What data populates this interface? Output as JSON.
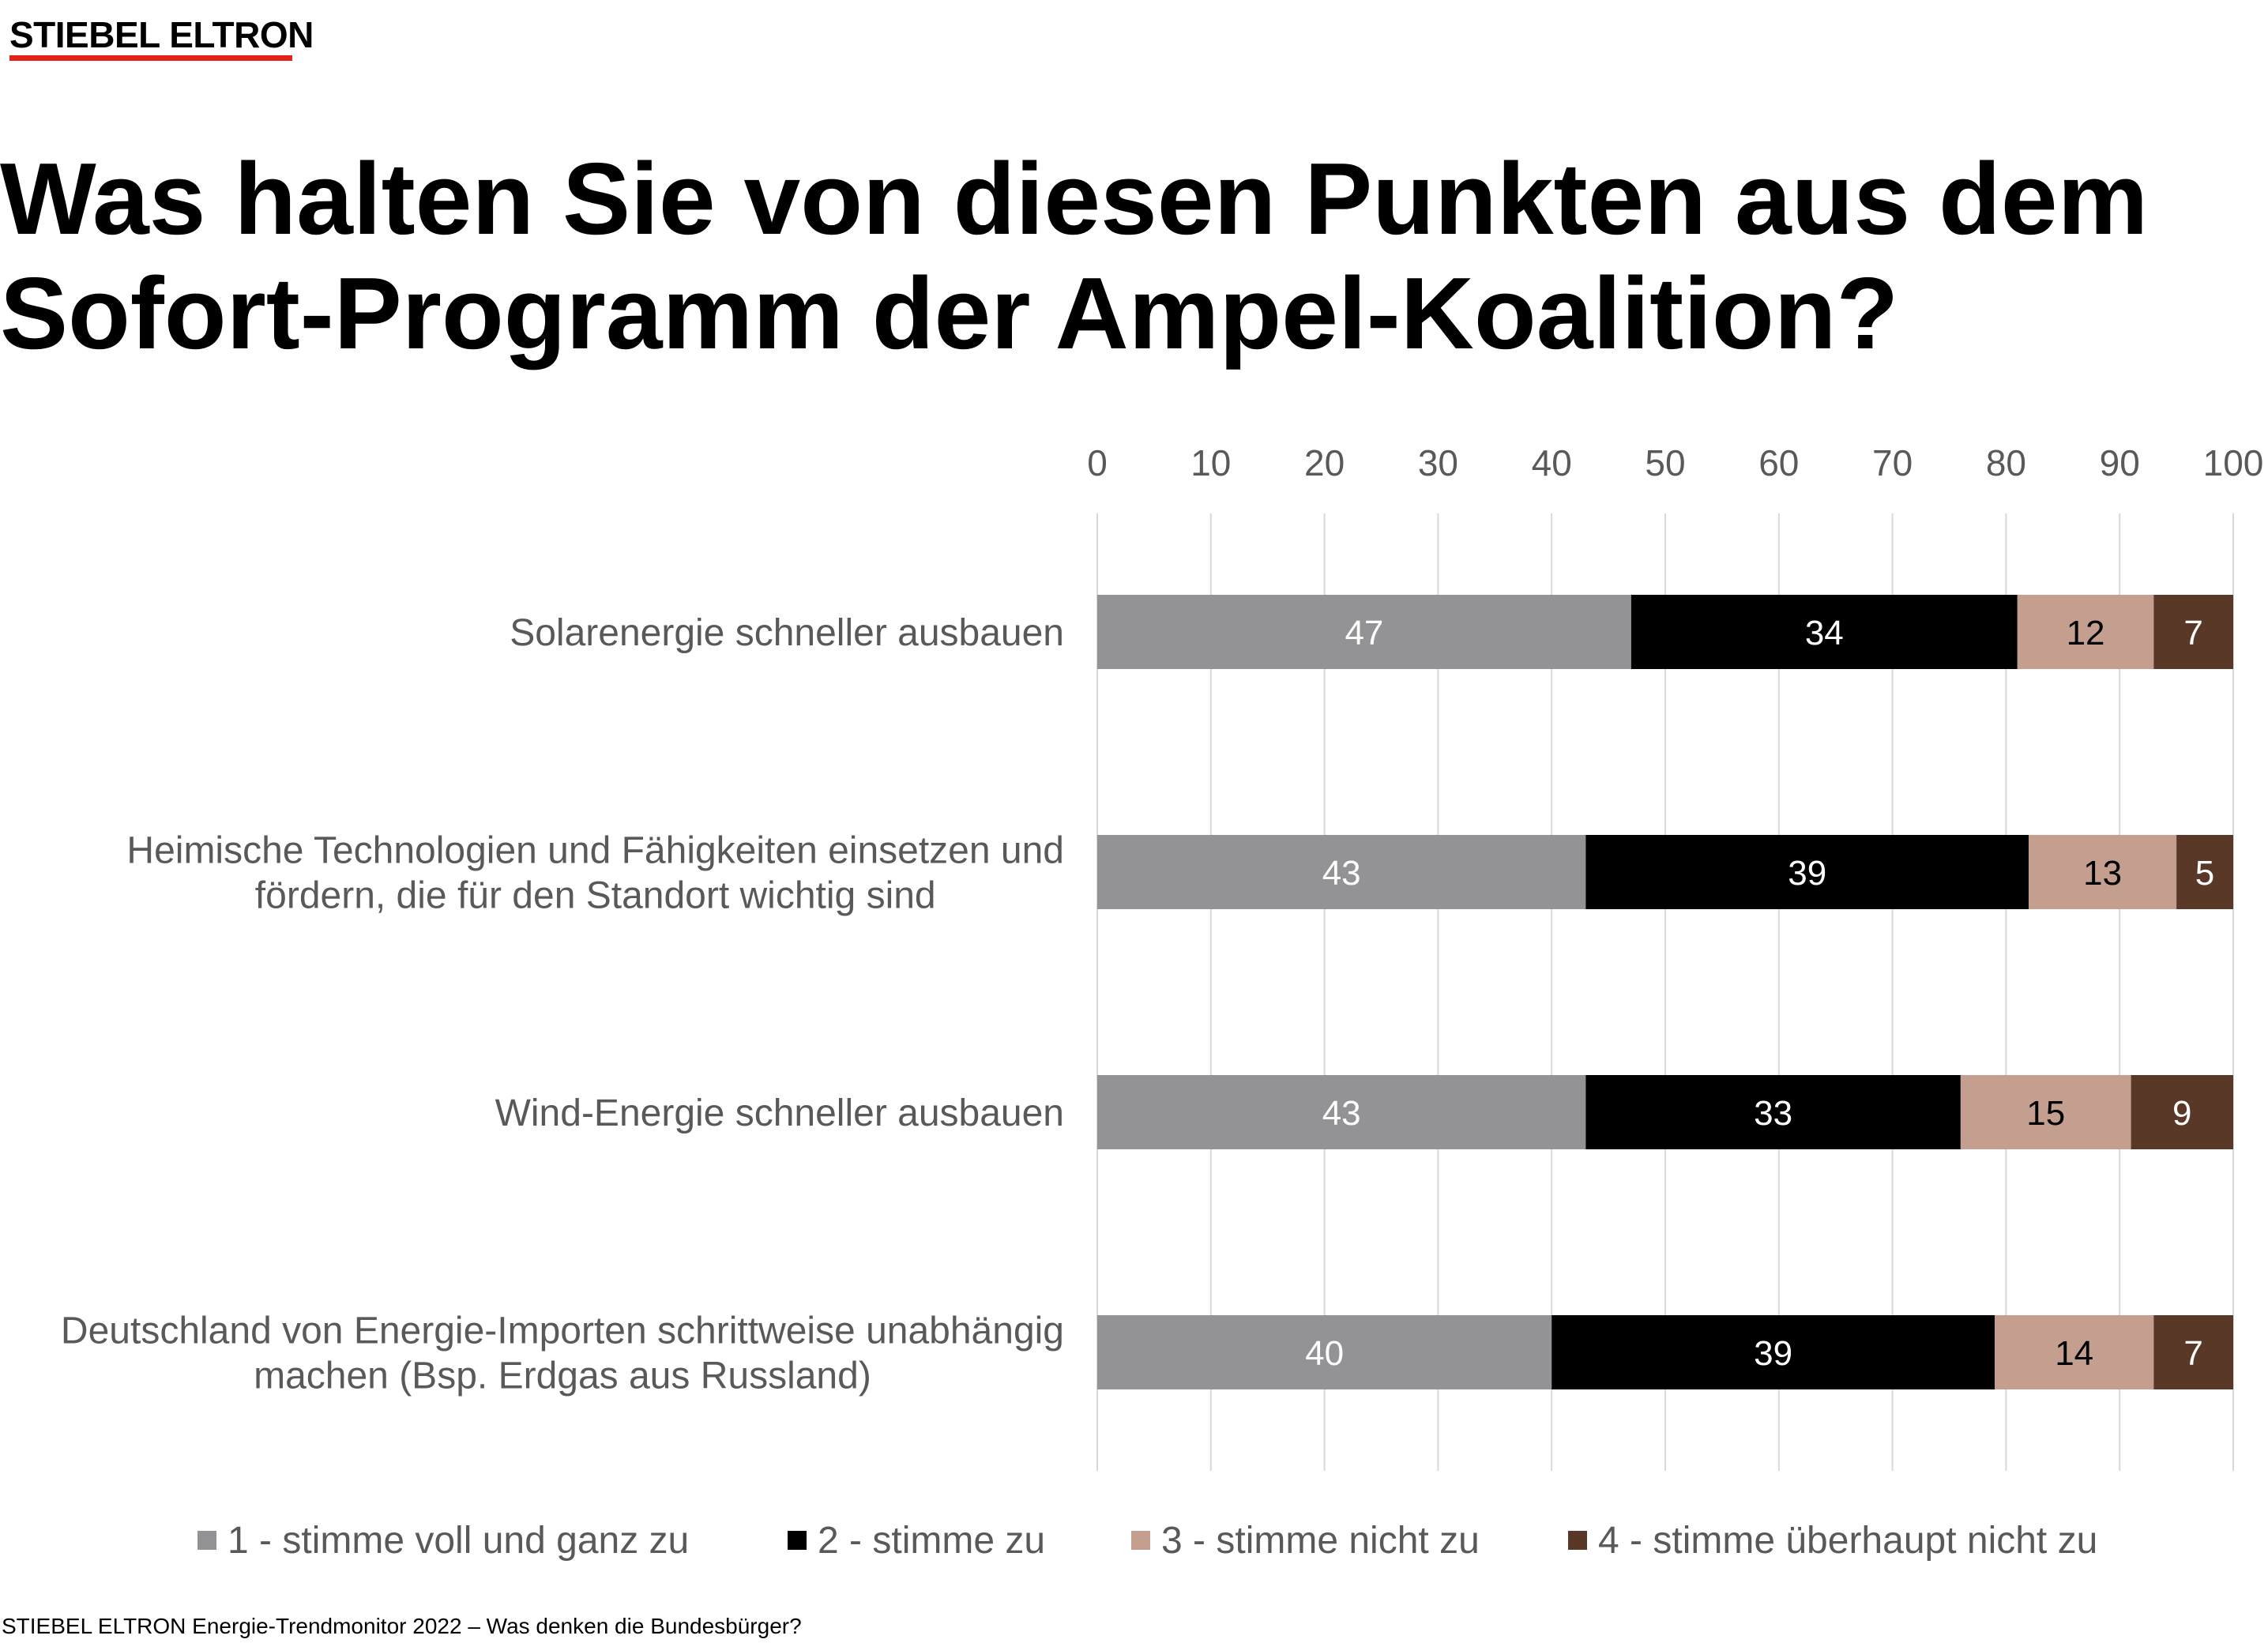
{
  "logo": {
    "text": "STIEBEL ELTRON",
    "bar_color": "#e2231a"
  },
  "title": {
    "line1": "Was halten Sie von diesen Punkten aus dem",
    "line2": "Sofort-Programm der Ampel-Koalition?"
  },
  "chart_data": {
    "type": "bar",
    "orientation": "horizontal",
    "stacked": true,
    "xlim": [
      0,
      100
    ],
    "xticks": [
      0,
      10,
      20,
      30,
      40,
      50,
      60,
      70,
      80,
      90,
      100
    ],
    "grid": true,
    "legend_position": "bottom",
    "categories": [
      [
        "Solarenergie schneller ausbauen"
      ],
      [
        "Heimische Technologien und Fähigkeiten einsetzen und",
        "fördern, die für den Standort wichtig sind"
      ],
      [
        "Wind-Energie schneller ausbauen"
      ],
      [
        "Deutschland von Energie-Importen schrittweise unabhängig",
        "machen (Bsp. Erdgas aus Russland)"
      ]
    ],
    "series": [
      {
        "name": "1 - stimme voll und ganz zu",
        "color": "#939396",
        "label_color": "#ffffff",
        "values": [
          47,
          43,
          43,
          40
        ]
      },
      {
        "name": "2 - stimme zu",
        "color": "#000000",
        "label_color": "#ffffff",
        "values": [
          34,
          39,
          33,
          39
        ]
      },
      {
        "name": "3 - stimme nicht zu",
        "color": "#c49e8e",
        "label_color": "#000000",
        "values": [
          12,
          13,
          15,
          14
        ]
      },
      {
        "name": "4 - stimme überhaupt nicht zu",
        "color": "#5a3828",
        "label_color": "#ffffff",
        "values": [
          7,
          5,
          9,
          7
        ]
      }
    ]
  },
  "footer": "STIEBEL ELTRON Energie-Trendmonitor 2022 – Was denken die Bundesbürger?"
}
